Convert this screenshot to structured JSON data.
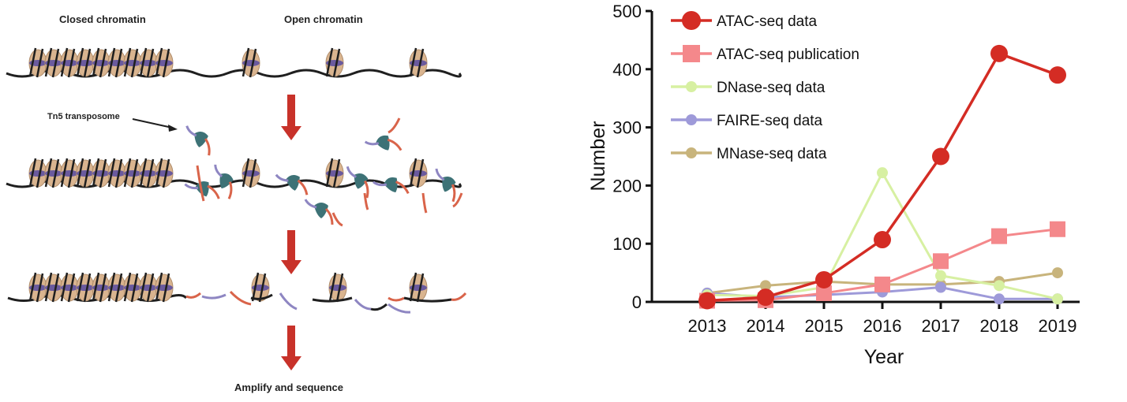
{
  "diagram": {
    "label_closed": "Closed chromatin",
    "label_open": "Open chromatin",
    "label_tn5": "Tn5 transposome",
    "label_amplify": "Amplify and sequence",
    "colors": {
      "dna": "#1f1f1f",
      "histone": "#d9b48f",
      "histone_band": "#6a5a9e",
      "arrow": "#c8322a",
      "tn5": "#3d7276",
      "adapter_red": "#d9644a",
      "adapter_purple": "#8e86c2"
    }
  },
  "chart_data": {
    "type": "line",
    "categories": [
      "2013",
      "2014",
      "2015",
      "2016",
      "2017",
      "2018",
      "2019"
    ],
    "xlabel": "Year",
    "ylabel": "Number",
    "ylim": [
      0,
      500
    ],
    "yticks": [
      "0",
      "100",
      "200",
      "300",
      "400",
      "500"
    ],
    "grid": false,
    "legend_position": "top-left",
    "series": [
      {
        "name": "ATAC-seq data",
        "marker": "circle",
        "color": "#d42c24",
        "values": [
          2,
          8,
          38,
          107,
          250,
          427,
          390
        ]
      },
      {
        "name": "ATAC-seq publication",
        "marker": "square",
        "color": "#f4888b",
        "values": [
          2,
          3,
          15,
          30,
          70,
          113,
          125
        ]
      },
      {
        "name": "DNase-seq data",
        "marker": "circle",
        "color": "#d7f0a2",
        "values": [
          12,
          10,
          25,
          222,
          45,
          28,
          5
        ]
      },
      {
        "name": "FAIRE-seq data",
        "marker": "circle",
        "color": "#9e9ad9",
        "values": [
          15,
          8,
          12,
          17,
          25,
          5,
          5
        ]
      },
      {
        "name": "MNase-seq data",
        "marker": "circle",
        "color": "#c8b47c",
        "values": [
          15,
          28,
          35,
          30,
          30,
          35,
          50
        ]
      }
    ]
  }
}
